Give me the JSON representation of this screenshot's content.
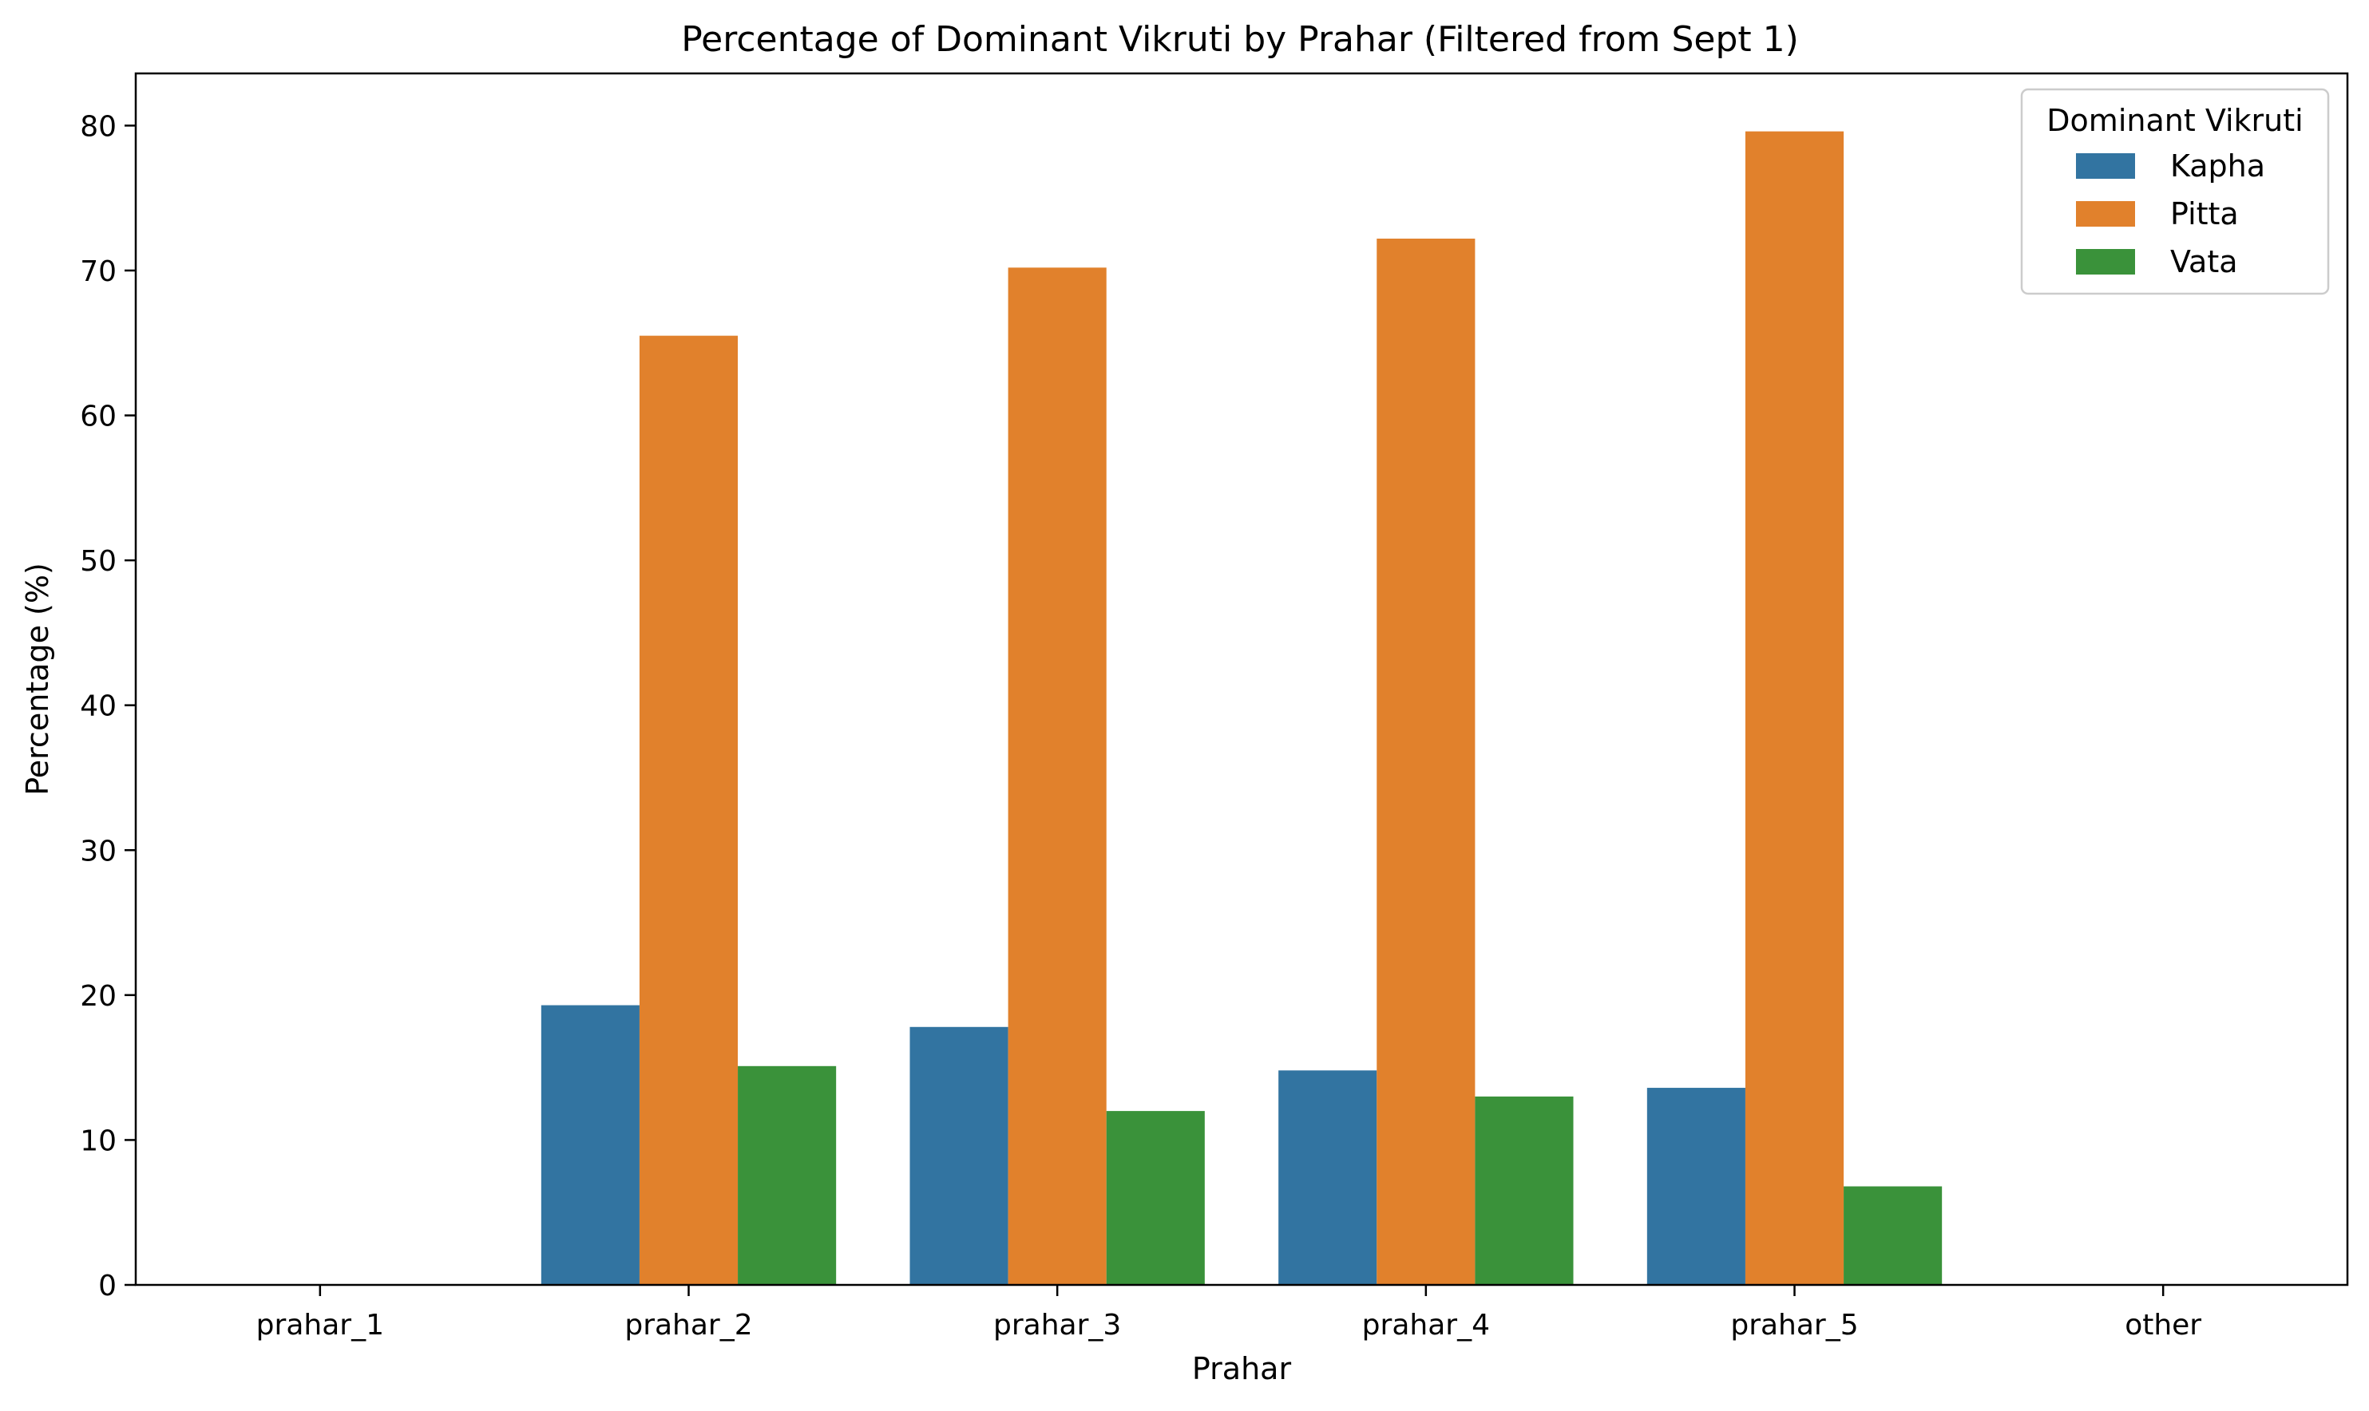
{
  "chart_data": {
    "type": "bar",
    "title": "Percentage of Dominant Vikruti by Prahar (Filtered from Sept 1)",
    "xlabel": "Prahar",
    "ylabel": "Percentage (%)",
    "categories": [
      "prahar_1",
      "prahar_2",
      "prahar_3",
      "prahar_4",
      "prahar_5",
      "other"
    ],
    "ylim": [
      0,
      83.6
    ],
    "yticks": [
      0,
      10,
      20,
      30,
      40,
      50,
      60,
      70,
      80
    ],
    "grid": false,
    "legend": {
      "title": "Dominant Vikruti",
      "placement": "top-right"
    },
    "series": [
      {
        "name": "Kapha",
        "color": "#3274a1",
        "values": [
          null,
          19.3,
          17.8,
          14.8,
          13.6,
          null
        ]
      },
      {
        "name": "Pitta",
        "color": "#e1812c",
        "values": [
          null,
          65.5,
          70.2,
          72.2,
          79.6,
          null
        ]
      },
      {
        "name": "Vata",
        "color": "#3a923a",
        "values": [
          null,
          15.1,
          12.0,
          13.0,
          6.8,
          null
        ]
      }
    ]
  }
}
